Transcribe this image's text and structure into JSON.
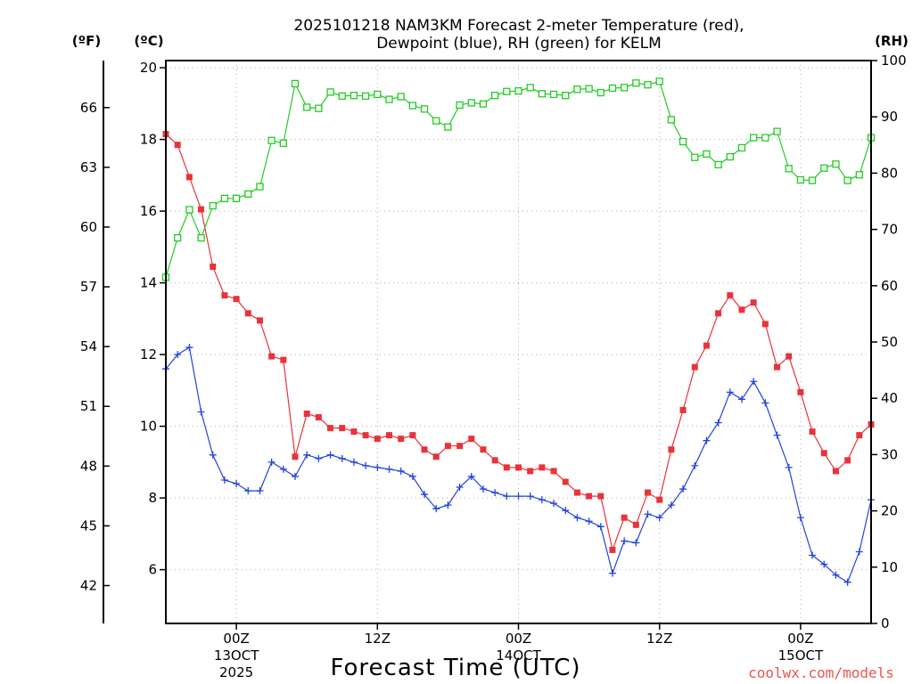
{
  "chart_data": {
    "type": "line",
    "title_line1": "2025101218 NAM3KM Forecast 2-meter Temperature (red),",
    "title_line2": "Dewpoint (blue), RH (green) for KELM",
    "xlabel": "Forecast Time (UTC)",
    "credit": "coolwx.com/models",
    "units": {
      "fahrenheit": "(ºF)",
      "celsius": "(ºC)",
      "rh": "(RH)"
    },
    "x_range_hours": [
      0,
      60
    ],
    "celsius_range": [
      4.5,
      20.2
    ],
    "rh_range": [
      0,
      100
    ],
    "celsius_ticks": [
      "6",
      "8",
      "10",
      "12",
      "14",
      "16",
      "18",
      "20"
    ],
    "fahrenheit_ticks": [
      "42",
      "45",
      "48",
      "51",
      "54",
      "57",
      "60",
      "63",
      "66"
    ],
    "rh_ticks": [
      "0",
      "10",
      "20",
      "30",
      "40",
      "50",
      "60",
      "70",
      "80",
      "90",
      "100"
    ],
    "x_ticks": [
      {
        "hour": 6,
        "label": "00Z",
        "sub1": "13OCT",
        "sub2": "2025"
      },
      {
        "hour": 18,
        "label": "12Z",
        "sub1": "",
        "sub2": ""
      },
      {
        "hour": 30,
        "label": "00Z",
        "sub1": "14OCT",
        "sub2": ""
      },
      {
        "hour": 42,
        "label": "12Z",
        "sub1": "",
        "sub2": ""
      },
      {
        "hour": 54,
        "label": "00Z",
        "sub1": "15OCT",
        "sub2": ""
      }
    ],
    "series": [
      {
        "name": "2-meter Temperature",
        "axis": "celsius",
        "color": "#e8333a",
        "marker": "square-filled",
        "values": [
          18.15,
          17.85,
          16.95,
          16.05,
          14.45,
          13.65,
          13.55,
          13.15,
          12.95,
          11.95,
          11.85,
          9.15,
          10.35,
          10.25,
          9.95,
          9.95,
          9.85,
          9.75,
          9.65,
          9.75,
          9.65,
          9.75,
          9.35,
          9.15,
          9.45,
          9.45,
          9.65,
          9.35,
          9.05,
          8.85,
          8.85,
          8.75,
          8.85,
          8.75,
          8.45,
          8.15,
          8.05,
          8.05,
          6.55,
          7.45,
          7.25,
          8.15,
          7.95,
          9.35,
          10.45,
          11.65,
          12.25,
          13.15,
          13.65,
          13.25,
          13.45,
          12.85,
          11.65,
          11.95,
          10.95,
          9.85,
          9.25,
          8.75,
          9.05,
          9.75,
          10.05
        ]
      },
      {
        "name": "Dewpoint",
        "axis": "celsius",
        "color": "#2244dd",
        "marker": "plus",
        "values": [
          11.6,
          12.0,
          12.2,
          10.4,
          9.2,
          8.5,
          8.4,
          8.2,
          8.2,
          9.0,
          8.8,
          8.6,
          9.2,
          9.1,
          9.2,
          9.1,
          9.0,
          8.9,
          8.85,
          8.8,
          8.75,
          8.6,
          8.1,
          7.7,
          7.8,
          8.3,
          8.6,
          8.25,
          8.15,
          8.05,
          8.05,
          8.05,
          7.95,
          7.85,
          7.65,
          7.45,
          7.35,
          7.2,
          5.9,
          6.8,
          6.75,
          7.55,
          7.45,
          7.8,
          8.25,
          8.9,
          9.6,
          10.1,
          10.95,
          10.75,
          11.25,
          10.65,
          9.75,
          8.85,
          7.45,
          6.4,
          6.15,
          5.85,
          5.65,
          6.5,
          7.95
        ]
      },
      {
        "name": "Relative Humidity",
        "axis": "rh",
        "color": "#22cc22",
        "marker": "square-open",
        "values": [
          61.5,
          68.5,
          73.5,
          68.5,
          74.2,
          75.5,
          75.5,
          76.3,
          77.6,
          85.8,
          85.3,
          95.9,
          91.7,
          91.5,
          94.4,
          93.7,
          93.8,
          93.7,
          94.0,
          93.1,
          93.6,
          92.0,
          91.4,
          89.3,
          88.2,
          92.1,
          92.5,
          92.3,
          93.8,
          94.5,
          94.6,
          95.2,
          94.1,
          94.0,
          93.8,
          94.9,
          95.0,
          94.3,
          95.1,
          95.2,
          96.0,
          95.7,
          96.3,
          89.5,
          85.6,
          82.8,
          83.4,
          81.5,
          82.9,
          84.5,
          86.3,
          86.3,
          87.4,
          80.8,
          78.8,
          78.7,
          80.9,
          81.6,
          78.7,
          79.7,
          86.3
        ]
      }
    ]
  }
}
